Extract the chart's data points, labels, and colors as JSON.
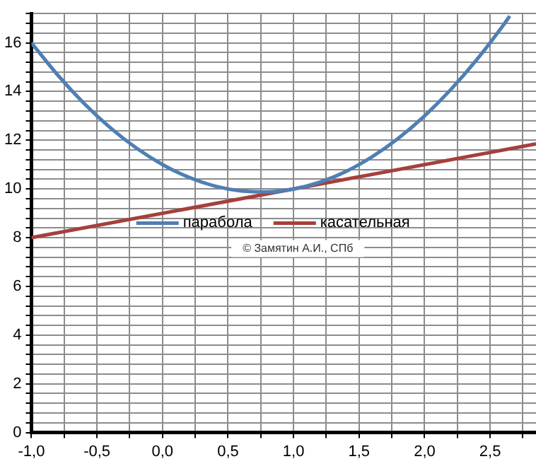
{
  "chart_data": {
    "type": "line",
    "x": [
      -1,
      -0.8,
      -0.6,
      -0.4,
      -0.2,
      0,
      0.2,
      0.4,
      0.6,
      0.8,
      1,
      1.2,
      1.4,
      1.6,
      1.8,
      2,
      2.2,
      2.4,
      2.6,
      2.65
    ],
    "series": [
      {
        "name": "парабола",
        "color": "#4f7fb3",
        "values": [
          16,
          14.68,
          13.52,
          12.52,
          11.68,
          11,
          10.48,
          10.12,
          9.92,
          9.88,
          10,
          10.28,
          10.72,
          11.32,
          12.08,
          13,
          14.08,
          15.32,
          16.72,
          17.1
        ]
      },
      {
        "name": "касательная",
        "color": "#a5403d",
        "x": [
          -1,
          2.85
        ],
        "values": [
          8,
          11.85
        ]
      }
    ],
    "xlim": [
      -1,
      2.85
    ],
    "ylim": [
      0,
      17.2
    ],
    "xticks": [
      {
        "value": -1,
        "label": "-1,0"
      },
      {
        "value": -0.75,
        "label": null
      },
      {
        "value": -0.5,
        "label": "-0,5"
      },
      {
        "value": -0.25,
        "label": null
      },
      {
        "value": 0,
        "label": "0,0"
      },
      {
        "value": 0.25,
        "label": null
      },
      {
        "value": 0.5,
        "label": "0,5"
      },
      {
        "value": 0.75,
        "label": null
      },
      {
        "value": 1,
        "label": "1,0"
      },
      {
        "value": 1.25,
        "label": null
      },
      {
        "value": 1.5,
        "label": "1,5"
      },
      {
        "value": 1.75,
        "label": null
      },
      {
        "value": 2,
        "label": "2,0"
      },
      {
        "value": 2.25,
        "label": null
      },
      {
        "value": 2.5,
        "label": "2,5"
      },
      {
        "value": 2.75,
        "label": null
      }
    ],
    "yticks": [
      0,
      {
        "value": 0.4,
        "label": null
      },
      {
        "value": 0.8,
        "label": null
      },
      {
        "value": 1.2,
        "label": null
      },
      {
        "value": 1.6,
        "label": null
      },
      2,
      {
        "value": 2.4,
        "label": null
      },
      {
        "value": 2.8,
        "label": null
      },
      {
        "value": 3.2,
        "label": null
      },
      {
        "value": 3.6,
        "label": null
      },
      4,
      {
        "value": 4.4,
        "label": null
      },
      {
        "value": 4.8,
        "label": null
      },
      {
        "value": 5.2,
        "label": null
      },
      {
        "value": 5.6,
        "label": null
      },
      6,
      {
        "value": 6.4,
        "label": null
      },
      {
        "value": 6.8,
        "label": null
      },
      {
        "value": 7.2,
        "label": null
      },
      {
        "value": 7.6,
        "label": null
      },
      8,
      {
        "value": 8.4,
        "label": null
      },
      {
        "value": 8.8,
        "label": null
      },
      {
        "value": 9.2,
        "label": null
      },
      {
        "value": 9.6,
        "label": null
      },
      10,
      {
        "value": 10.4,
        "label": null
      },
      {
        "value": 10.8,
        "label": null
      },
      {
        "value": 11.2,
        "label": null
      },
      {
        "value": 11.6,
        "label": null
      },
      12,
      {
        "value": 12.4,
        "label": null
      },
      {
        "value": 12.8,
        "label": null
      },
      {
        "value": 13.2,
        "label": null
      },
      {
        "value": 13.6,
        "label": null
      },
      14,
      {
        "value": 14.4,
        "label": null
      },
      {
        "value": 14.8,
        "label": null
      },
      {
        "value": 15.2,
        "label": null
      },
      {
        "value": 15.6,
        "label": null
      },
      16,
      {
        "value": 16.4,
        "label": null
      },
      {
        "value": 16.8,
        "label": null
      },
      {
        "value": 17.2,
        "label": null
      }
    ],
    "grid": true,
    "legend": "center",
    "marker": "none",
    "line_style": "solid",
    "annotations": [
      "© Замятин А.И., СПб"
    ]
  }
}
